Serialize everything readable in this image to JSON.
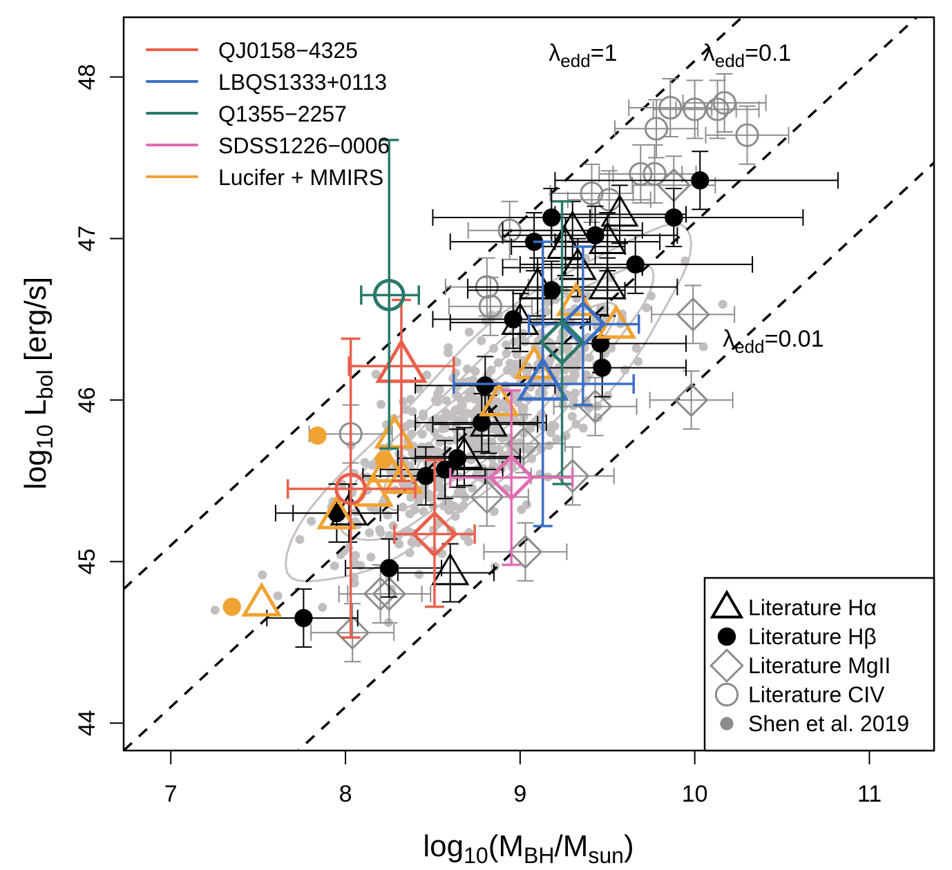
{
  "chart_data": {
    "type": "scatter",
    "title": "",
    "xlabel": {
      "base": "log",
      "sub": "10",
      "rest": "(M",
      "sub2": "BH",
      "mid": "/M",
      "sub3": "sun",
      "end": ")"
    },
    "ylabel": {
      "base": "log",
      "sub": "10",
      "mid": " L",
      "sub2": "bol",
      "end": " [erg/s]"
    },
    "xlim": [
      6.73,
      11.37
    ],
    "ylim": [
      43.83,
      48.37
    ],
    "x_ticks": [
      7,
      8,
      9,
      10,
      11
    ],
    "y_ticks": [
      44,
      45,
      46,
      47,
      48
    ],
    "grid": false,
    "eddington_lines": [
      {
        "label_base": "λ",
        "label_sub": "edd",
        "label_val": "=1",
        "offset": 38.1,
        "label_at": [
          9.36,
          48.1
        ]
      },
      {
        "label_base": "λ",
        "label_sub": "edd",
        "label_val": "=0.1",
        "offset": 37.1,
        "label_at": [
          10.3,
          48.1
        ]
      },
      {
        "label_base": "λ",
        "label_sub": "edd",
        "label_val": "=0.01",
        "offset": 36.1,
        "label_at": [
          10.45,
          46.33
        ]
      }
    ],
    "legend_objects": {
      "placement": "top-left",
      "entries": [
        {
          "name": "QJ0158−4325",
          "color": "#e8604c"
        },
        {
          "name": "LBQS1333+0113",
          "color": "#3b6fc6"
        },
        {
          "name": "Q1355−2257",
          "color": "#2a7a6c"
        },
        {
          "name": "SDSS1226−0006",
          "color": "#e06cb4"
        },
        {
          "name": "Lucifer + MMIRS",
          "color": "#f0a332"
        }
      ]
    },
    "legend_markers": {
      "placement": "bottom-right",
      "entries": [
        {
          "name": "Literature Hα",
          "marker": "triangle",
          "color": "#000000"
        },
        {
          "name": "Literature Hβ",
          "marker": "circle-filled",
          "color": "#000000"
        },
        {
          "name": "Literature MgII",
          "marker": "diamond",
          "color": "#8c8c8c"
        },
        {
          "name": "Literature CIV",
          "marker": "circle-open",
          "color": "#8c8c8c"
        },
        {
          "name": "Shen et al. 2019",
          "marker": "dot",
          "color": "#8c8c8c"
        }
      ]
    },
    "series": [
      {
        "name": "QJ0158−4325",
        "color": "#e8604c",
        "points": [
          {
            "marker": "circle-open",
            "x": 8.03,
            "y": 45.45,
            "xerr": [
              7.67,
              8.4
            ],
            "yerr": [
              44.53,
              46.38
            ]
          },
          {
            "marker": "triangle",
            "x": 8.32,
            "y": 46.21,
            "xerr": [
              8.02,
              8.62
            ],
            "yerr": [
              45.5,
              46.62
            ]
          },
          {
            "marker": "diamond",
            "x": 8.51,
            "y": 45.17,
            "xerr": [
              8.28,
              8.74
            ],
            "yerr": [
              44.72,
              45.63
            ]
          }
        ]
      },
      {
        "name": "LBQS1333+0113",
        "color": "#3b6fc6",
        "points": [
          {
            "marker": "triangle",
            "x": 9.13,
            "y": 46.1,
            "xerr": [
              8.62,
              9.65
            ],
            "yerr": [
              45.22,
              46.98
            ]
          },
          {
            "marker": "diamond",
            "x": 9.36,
            "y": 46.47,
            "xerr": [
              9.05,
              9.68
            ],
            "yerr": [
              45.97,
              46.95
            ]
          }
        ]
      },
      {
        "name": "Q1355−2257",
        "color": "#2a7a6c",
        "points": [
          {
            "marker": "circle-open",
            "x": 8.25,
            "y": 46.65,
            "xerr": [
              8.09,
              8.42
            ],
            "yerr": [
              45.7,
              47.61
            ]
          },
          {
            "marker": "diamond",
            "x": 9.24,
            "y": 46.36,
            "xerr": null,
            "yerr": [
              45.48,
              47.23
            ]
          }
        ]
      },
      {
        "name": "SDSS1226−0006",
        "color": "#e06cb4",
        "points": [
          {
            "marker": "diamond",
            "x": 8.95,
            "y": 45.52,
            "xerr": [
              8.6,
              9.3
            ],
            "yerr": [
              44.98,
              46.06
            ]
          }
        ]
      },
      {
        "name": "Lucifer + MMIRS",
        "color": "#f0a332",
        "points": [
          {
            "marker": "circle-filled",
            "x": 7.35,
            "y": 44.72
          },
          {
            "marker": "triangle",
            "x": 7.52,
            "y": 44.74
          },
          {
            "marker": "circle-filled",
            "x": 7.84,
            "y": 45.78
          },
          {
            "marker": "triangle",
            "x": 7.95,
            "y": 45.28
          },
          {
            "marker": "triangle",
            "x": 8.28,
            "y": 45.78
          },
          {
            "marker": "circle-filled",
            "x": 8.22,
            "y": 45.63
          },
          {
            "marker": "triangle",
            "x": 8.24,
            "y": 45.57
          },
          {
            "marker": "triangle",
            "x": 8.33,
            "y": 45.5
          },
          {
            "marker": "triangle",
            "x": 8.16,
            "y": 45.42
          },
          {
            "marker": "triangle",
            "x": 8.88,
            "y": 45.98
          },
          {
            "marker": "triangle",
            "x": 9.08,
            "y": 46.21
          },
          {
            "marker": "triangle",
            "x": 9.32,
            "y": 46.6
          },
          {
            "marker": "triangle",
            "x": 9.55,
            "y": 46.46
          }
        ]
      },
      {
        "name": "Literature Hα",
        "color": "#000000",
        "points": [
          {
            "marker": "triangle",
            "x": 9.57,
            "y": 47.15,
            "xerr": [
              9.2,
              9.95
            ]
          },
          {
            "marker": "triangle",
            "x": 9.3,
            "y": 47.05,
            "xerr": [
              8.9,
              9.7
            ]
          },
          {
            "marker": "triangle",
            "x": 9.26,
            "y": 46.95,
            "xerr": [
              8.95,
              9.6
            ]
          },
          {
            "marker": "triangle",
            "x": 9.5,
            "y": 46.98,
            "xerr": [
              9.2,
              9.8
            ]
          },
          {
            "marker": "triangle",
            "x": 9.33,
            "y": 46.82,
            "xerr": [
              8.9,
              9.7
            ]
          },
          {
            "marker": "triangle",
            "x": 9.1,
            "y": 46.7,
            "xerr": [
              8.7,
              9.5
            ]
          },
          {
            "marker": "triangle",
            "x": 9.5,
            "y": 46.7,
            "xerr": [
              9.1,
              9.9
            ]
          },
          {
            "marker": "triangle",
            "x": 9.0,
            "y": 46.48,
            "xerr": [
              8.6,
              9.4
            ]
          },
          {
            "marker": "triangle",
            "x": 8.82,
            "y": 45.85,
            "xerr": [
              8.5,
              9.1
            ]
          },
          {
            "marker": "triangle",
            "x": 8.68,
            "y": 45.65,
            "xerr": [
              8.4,
              9.0
            ]
          },
          {
            "marker": "triangle",
            "x": 8.02,
            "y": 45.3,
            "xerr": [
              7.7,
              8.3
            ]
          },
          {
            "marker": "triangle",
            "x": 8.6,
            "y": 44.93,
            "xerr": [
              8.3,
              8.85
            ]
          }
        ]
      },
      {
        "name": "Literature Hβ",
        "color": "#000000",
        "points": [
          {
            "marker": "circle-filled",
            "x": 10.03,
            "y": 47.36,
            "xerr": [
              9.2,
              10.82
            ]
          },
          {
            "marker": "circle-filled",
            "x": 9.18,
            "y": 47.13,
            "xerr": [
              8.5,
              9.9
            ]
          },
          {
            "marker": "circle-filled",
            "x": 9.88,
            "y": 47.13,
            "xerr": [
              9.4,
              10.62
            ]
          },
          {
            "marker": "circle-filled",
            "x": 9.43,
            "y": 47.02,
            "xerr": [
              8.9,
              9.9
            ]
          },
          {
            "marker": "circle-filled",
            "x": 9.08,
            "y": 46.98,
            "xerr": [
              8.6,
              9.5
            ]
          },
          {
            "marker": "circle-filled",
            "x": 9.66,
            "y": 46.84,
            "xerr": [
              9.0,
              10.33
            ]
          },
          {
            "marker": "circle-filled",
            "x": 9.18,
            "y": 46.68,
            "xerr": [
              8.7,
              9.6
            ]
          },
          {
            "marker": "circle-filled",
            "x": 8.96,
            "y": 46.5,
            "xerr": [
              8.5,
              9.4
            ]
          },
          {
            "marker": "circle-filled",
            "x": 9.46,
            "y": 46.35,
            "xerr": [
              9.0,
              9.95
            ]
          },
          {
            "marker": "circle-filled",
            "x": 9.47,
            "y": 46.2,
            "xerr": [
              9.0,
              9.95
            ]
          },
          {
            "marker": "circle-filled",
            "x": 8.8,
            "y": 46.09,
            "xerr": [
              8.4,
              9.2
            ]
          },
          {
            "marker": "circle-filled",
            "x": 8.78,
            "y": 45.86,
            "xerr": [
              8.4,
              9.15
            ]
          },
          {
            "marker": "circle-filled",
            "x": 8.64,
            "y": 45.64,
            "xerr": [
              8.3,
              9.0
            ]
          },
          {
            "marker": "circle-filled",
            "x": 8.57,
            "y": 45.57,
            "xerr": [
              8.2,
              8.9
            ]
          },
          {
            "marker": "circle-filled",
            "x": 8.46,
            "y": 45.53,
            "xerr": [
              8.1,
              8.8
            ]
          },
          {
            "marker": "circle-filled",
            "x": 7.95,
            "y": 45.3,
            "xerr": [
              7.6,
              8.2
            ]
          },
          {
            "marker": "circle-filled",
            "x": 8.25,
            "y": 44.96,
            "xerr": [
              8.0,
              8.55
            ]
          },
          {
            "marker": "circle-filled",
            "x": 7.76,
            "y": 44.65,
            "xerr": [
              7.55,
              8.07
            ]
          }
        ]
      },
      {
        "name": "Literature MgII",
        "color": "#8c8c8c",
        "points": [
          {
            "marker": "diamond",
            "x": 9.88,
            "y": 47.33
          },
          {
            "marker": "diamond",
            "x": 9.98,
            "y": 46.0
          },
          {
            "marker": "diamond",
            "x": 9.99,
            "y": 46.53
          },
          {
            "marker": "diamond",
            "x": 9.43,
            "y": 45.96
          },
          {
            "marker": "diamond",
            "x": 9.3,
            "y": 45.53
          },
          {
            "marker": "diamond",
            "x": 9.02,
            "y": 45.73
          },
          {
            "marker": "diamond",
            "x": 8.81,
            "y": 45.4
          },
          {
            "marker": "diamond",
            "x": 9.03,
            "y": 45.06
          },
          {
            "marker": "diamond",
            "x": 8.25,
            "y": 44.8
          },
          {
            "marker": "diamond",
            "x": 8.2,
            "y": 44.8
          },
          {
            "marker": "diamond",
            "x": 8.04,
            "y": 44.56
          }
        ]
      },
      {
        "name": "Literature CIV",
        "color": "#8c8c8c",
        "points": [
          {
            "marker": "circle-open",
            "x": 10.17,
            "y": 47.84
          },
          {
            "marker": "circle-open",
            "x": 9.86,
            "y": 47.81
          },
          {
            "marker": "circle-open",
            "x": 10.0,
            "y": 47.8
          },
          {
            "marker": "circle-open",
            "x": 10.13,
            "y": 47.8
          },
          {
            "marker": "circle-open",
            "x": 9.78,
            "y": 47.68
          },
          {
            "marker": "circle-open",
            "x": 10.3,
            "y": 47.64
          },
          {
            "marker": "circle-open",
            "x": 9.69,
            "y": 47.4
          },
          {
            "marker": "circle-open",
            "x": 9.77,
            "y": 47.4
          },
          {
            "marker": "circle-open",
            "x": 9.41,
            "y": 47.28
          },
          {
            "marker": "circle-open",
            "x": 9.51,
            "y": 47.24
          },
          {
            "marker": "circle-open",
            "x": 8.94,
            "y": 47.05
          },
          {
            "marker": "circle-open",
            "x": 8.81,
            "y": 46.7
          },
          {
            "marker": "circle-open",
            "x": 8.83,
            "y": 46.58
          },
          {
            "marker": "circle-open",
            "x": 8.03,
            "y": 45.79
          }
        ]
      }
    ],
    "shen2019": {
      "name": "Shen et al. 2019",
      "color": "#c4bfbf",
      "description": "~500 grey scatter points with density contours, concentrated along M 7.5–10.3, L 44.5–47.5"
    }
  }
}
